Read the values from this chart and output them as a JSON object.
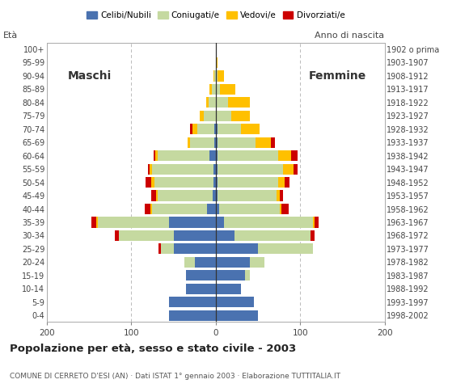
{
  "age_groups": [
    "0-4",
    "5-9",
    "10-14",
    "15-19",
    "20-24",
    "25-29",
    "30-34",
    "35-39",
    "40-44",
    "45-49",
    "50-54",
    "55-59",
    "60-64",
    "65-69",
    "70-74",
    "75-79",
    "80-84",
    "85-89",
    "90-94",
    "95-99",
    "100+"
  ],
  "birth_years": [
    "1998-2002",
    "1993-1997",
    "1988-1992",
    "1983-1987",
    "1978-1982",
    "1973-1977",
    "1968-1972",
    "1963-1967",
    "1958-1962",
    "1953-1957",
    "1948-1952",
    "1943-1947",
    "1938-1942",
    "1933-1937",
    "1928-1932",
    "1923-1927",
    "1918-1922",
    "1913-1917",
    "1908-1912",
    "1903-1907",
    "1902 o prima"
  ],
  "males": {
    "celibe": [
      55,
      55,
      35,
      35,
      25,
      50,
      50,
      55,
      10,
      4,
      3,
      3,
      7,
      2,
      2,
      0,
      0,
      0,
      0,
      0,
      0
    ],
    "coniugato": [
      0,
      0,
      0,
      0,
      12,
      15,
      65,
      85,
      65,
      65,
      70,
      72,
      62,
      28,
      20,
      14,
      8,
      5,
      2,
      0,
      0
    ],
    "vedovo": [
      0,
      0,
      0,
      0,
      0,
      0,
      0,
      2,
      2,
      2,
      3,
      3,
      3,
      3,
      6,
      5,
      3,
      2,
      1,
      0,
      0
    ],
    "divorziato": [
      0,
      0,
      0,
      0,
      0,
      3,
      5,
      5,
      7,
      5,
      7,
      2,
      2,
      0,
      2,
      0,
      0,
      0,
      0,
      0,
      0
    ]
  },
  "females": {
    "nubile": [
      50,
      45,
      30,
      35,
      40,
      50,
      22,
      10,
      4,
      2,
      2,
      2,
      2,
      2,
      2,
      0,
      0,
      0,
      0,
      0,
      0
    ],
    "coniugata": [
      0,
      0,
      0,
      5,
      18,
      65,
      90,
      105,
      72,
      70,
      72,
      78,
      72,
      45,
      28,
      18,
      15,
      5,
      2,
      0,
      0
    ],
    "vedova": [
      0,
      0,
      0,
      0,
      0,
      0,
      0,
      2,
      2,
      4,
      8,
      12,
      15,
      18,
      22,
      22,
      25,
      18,
      8,
      2,
      0
    ],
    "divorziata": [
      0,
      0,
      0,
      0,
      0,
      0,
      5,
      5,
      8,
      4,
      5,
      5,
      8,
      5,
      0,
      0,
      0,
      0,
      0,
      0,
      0
    ]
  },
  "colors": {
    "celibe": "#4a72b0",
    "coniugato": "#c5d9a0",
    "vedovo": "#ffc000",
    "divorziato": "#cc0000"
  },
  "legend_labels": [
    "Celibi/Nubili",
    "Coniugati/e",
    "Vedovi/e",
    "Divorziati/e"
  ],
  "title": "Popolazione per età, sesso e stato civile - 2003",
  "subtitle": "COMUNE DI CERRETO D'ESI (AN) · Dati ISTAT 1° gennaio 2003 · Elaborazione TUTTITALIA.IT",
  "xlim": 200,
  "ylabel_left": "Età",
  "ylabel_right": "Anno di nascita",
  "maschi_label": "Maschi",
  "femmine_label": "Femmine",
  "bg_color": "#ffffff",
  "grid_color": "#bbbbbb",
  "border_color": "#aaaaaa"
}
